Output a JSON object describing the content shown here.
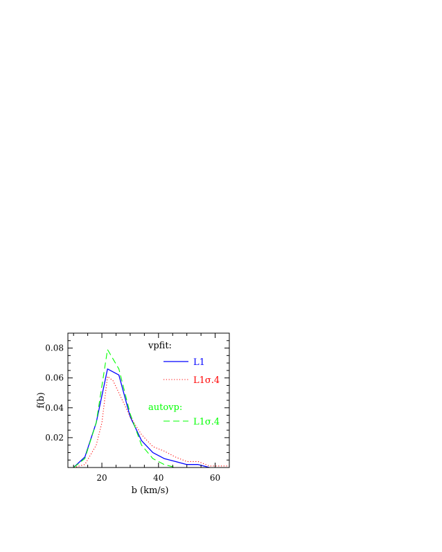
{
  "chart_data": {
    "type": "line",
    "xlabel": "b (km/s)",
    "ylabel": "f(b)",
    "xlim": [
      8,
      65
    ],
    "ylim": [
      0,
      0.09
    ],
    "x_ticks": [
      20,
      40,
      60
    ],
    "y_ticks": [
      0.02,
      0.04,
      0.06,
      0.08
    ],
    "x_tick_labels": [
      "20",
      "40",
      "60"
    ],
    "y_tick_labels": [
      "0.02",
      "0.04",
      "0.06",
      "0.08"
    ],
    "legend": {
      "heading1": "vpfit:",
      "heading2": "autovp:",
      "placement": "top-right"
    },
    "series": [
      {
        "name": "L1",
        "group": "vpfit",
        "color": "#0000ff",
        "dash": "solid",
        "x": [
          10,
          14,
          18,
          22,
          26,
          30,
          34,
          38,
          42,
          46,
          50,
          54,
          58
        ],
        "y": [
          0.0,
          0.007,
          0.03,
          0.066,
          0.062,
          0.034,
          0.018,
          0.01,
          0.006,
          0.004,
          0.002,
          0.002,
          0.0
        ]
      },
      {
        "name": "L1σ.4",
        "group": "vpfit",
        "color": "#ff0000",
        "dash": "dotted",
        "x": [
          10,
          14,
          18,
          20,
          22,
          24,
          26,
          30,
          34,
          38,
          42,
          46,
          50,
          54,
          58,
          62,
          65
        ],
        "y": [
          0.0,
          0.002,
          0.015,
          0.03,
          0.061,
          0.058,
          0.05,
          0.034,
          0.022,
          0.014,
          0.011,
          0.007,
          0.004,
          0.004,
          0.001,
          0.001,
          0.001
        ]
      },
      {
        "name": "L1σ.4",
        "group": "autovp",
        "color": "#00ff00",
        "dash": "dashed",
        "x": [
          10,
          14,
          18,
          22,
          26,
          30,
          34,
          38,
          42,
          46,
          50
        ],
        "y": [
          0.0,
          0.006,
          0.03,
          0.079,
          0.066,
          0.036,
          0.015,
          0.006,
          0.002,
          0.0,
          0.0
        ]
      }
    ]
  }
}
